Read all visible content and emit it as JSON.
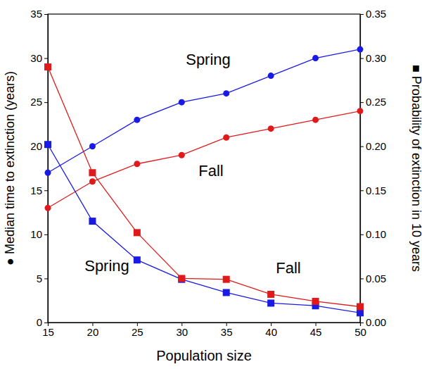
{
  "chart_data": {
    "type": "line",
    "x_label": "Population size",
    "y_label": "● Median time to extinction (years)",
    "y2_label": "■ Probability of extinction in 10 years",
    "x": [
      15,
      20,
      25,
      30,
      35,
      40,
      45,
      50
    ],
    "xlim": [
      15,
      50
    ],
    "xticks": [
      15,
      20,
      25,
      30,
      35,
      40,
      45,
      50
    ],
    "ylim": [
      0,
      35
    ],
    "yticks": [
      0,
      5,
      10,
      15,
      20,
      25,
      30,
      35
    ],
    "y2lim": [
      0,
      0.35
    ],
    "y2ticks": [
      {
        "value": 0,
        "label": "0.00"
      },
      {
        "value": 0.05,
        "label": "0.05"
      },
      {
        "value": 0.1,
        "label": "0.10"
      },
      {
        "value": 0.15,
        "label": "0.15"
      },
      {
        "value": 0.2,
        "label": "0.20"
      },
      {
        "value": 0.25,
        "label": "0.25"
      },
      {
        "value": 0.3,
        "label": "0.30"
      },
      {
        "value": 0.35,
        "label": "0.35"
      }
    ],
    "series": [
      {
        "name": "Spring",
        "color": "#1a1ae6",
        "marker": "circle",
        "values": [
          17,
          20,
          23,
          25,
          26,
          28,
          30,
          31
        ]
      },
      {
        "name": "Fall",
        "color": "#e01a1a",
        "marker": "circle",
        "values": [
          13,
          16,
          18,
          19,
          21,
          22,
          23,
          24
        ]
      },
      {
        "name": "Spring",
        "color": "#1a1ae6",
        "marker": "square",
        "axis": "y2",
        "values": [
          0.202,
          0.115,
          0.071,
          0.049,
          0.034,
          0.022,
          0.019,
          0.011
        ]
      },
      {
        "name": "Fall",
        "color": "#e01a1a",
        "marker": "square",
        "axis": "y2",
        "values": [
          0.29,
          0.17,
          0.102,
          0.05,
          0.049,
          0.032,
          0.024,
          0.018
        ]
      }
    ]
  }
}
